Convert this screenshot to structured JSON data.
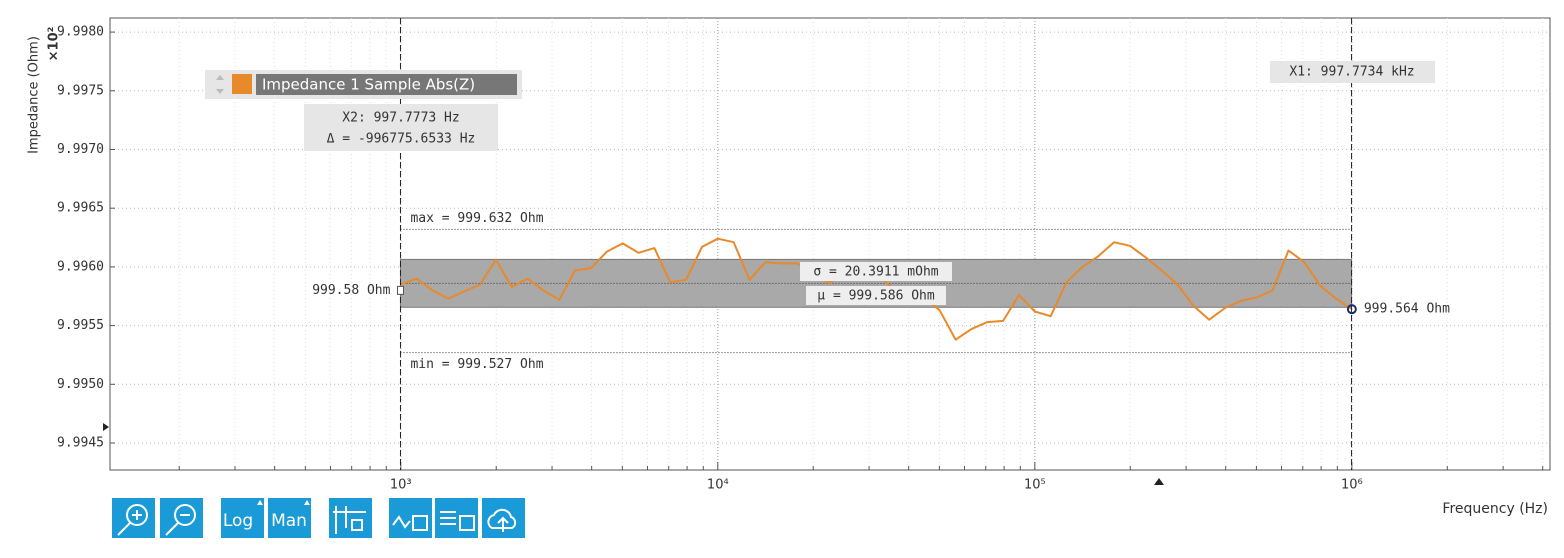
{
  "chart_data": {
    "type": "line",
    "y_label": "Impedance (Ohm)",
    "y_multiplier": "×10²",
    "x_label": "Frequency (Hz)",
    "log_x": true,
    "grid": true,
    "xlim": [
      121,
      4217000
    ],
    "ylim": [
      9.99427,
      9.99812
    ],
    "xticks": [
      {
        "value": 1000,
        "label": "10³"
      },
      {
        "value": 10000,
        "label": "10⁴"
      },
      {
        "value": 100000,
        "label": "10⁵"
      },
      {
        "value": 1000000,
        "label": "10⁶"
      }
    ],
    "xminor_ticks": [
      200,
      300,
      400,
      500,
      600,
      700,
      800,
      900,
      2000,
      3000,
      4000,
      5000,
      6000,
      7000,
      8000,
      9000,
      20000,
      30000,
      40000,
      50000,
      60000,
      70000,
      80000,
      90000,
      200000,
      300000,
      400000,
      500000,
      600000,
      700000,
      800000,
      900000,
      2000000,
      3000000,
      4000000
    ],
    "yticks": [
      {
        "value": 9.998,
        "label": "9.9980"
      },
      9.9975,
      {
        "value": 9.997,
        "label": "9.9970"
      },
      9.9965,
      {
        "value": 9.996,
        "label": "9.9960"
      },
      9.9955,
      {
        "value": 9.995,
        "label": "9.9950"
      },
      9.9945
    ],
    "x": [
      1000,
      1122,
      1259,
      1413,
      1585,
      1778,
      1995,
      2239,
      2512,
      2818,
      3162,
      3548,
      3981,
      4467,
      5012,
      5623,
      6310,
      7079,
      7943,
      8913,
      10000,
      11220,
      12590,
      14130,
      15850,
      17780,
      19950,
      22390,
      25120,
      28180,
      31620,
      35480,
      39810,
      44670,
      50120,
      56230,
      63100,
      70790,
      79430,
      89130,
      100000,
      112200,
      125900,
      141300,
      158500,
      177800,
      199500,
      223900,
      251200,
      281800,
      316200,
      354800,
      398100,
      446700,
      501200,
      562300,
      631000,
      707900,
      794300,
      891300,
      1000000
    ],
    "series": [
      {
        "name": "Impedance 1 Sample Abs(Z)",
        "color": "#e8892b",
        "values": [
          9.99585,
          9.9959,
          9.9958,
          9.99573,
          9.99579,
          9.99585,
          9.99606,
          9.99583,
          9.9959,
          9.9958,
          9.99572,
          9.99597,
          9.99599,
          9.99613,
          9.9962,
          9.99612,
          9.99616,
          9.99587,
          9.99589,
          9.99617,
          9.99624,
          9.99621,
          9.99589,
          9.99604,
          9.99603,
          9.99603,
          9.99595,
          9.99586,
          9.99595,
          9.99592,
          9.99595,
          9.99582,
          9.99568,
          9.99574,
          9.99563,
          9.99538,
          9.99547,
          9.99553,
          9.99554,
          9.99576,
          9.99562,
          9.99558,
          9.99587,
          9.996,
          9.99609,
          9.99621,
          9.99618,
          9.99608,
          9.99597,
          9.99585,
          9.99567,
          9.99555,
          9.99565,
          9.99571,
          9.99574,
          9.9958,
          9.99614,
          9.99604,
          9.99584,
          9.99573,
          9.99564
        ]
      }
    ],
    "stats": {
      "max": {
        "value": 9.99632,
        "label": "max = 999.632 Ohm"
      },
      "min": {
        "value": 9.99527,
        "label": "min = 999.527 Ohm"
      },
      "sigma": {
        "value": 0.000203911,
        "label": "σ = 20.3911 mOhm"
      },
      "mean": {
        "value": 9.99586,
        "label": "μ = 999.586 Ohm"
      }
    },
    "left_marker": {
      "value": 9.9958,
      "label": "999.58 Ohm"
    },
    "end_label": "999.564 Ohm",
    "cursors": [
      {
        "value": 997773.4,
        "label": "X1: 997.7734 kHz"
      },
      {
        "value": 997.7773,
        "label": "X2: 997.7773 Hz"
      }
    ],
    "delta_label": "Δ = -996775.6533 Hz",
    "toolbar": [
      "Log",
      "Man"
    ]
  }
}
